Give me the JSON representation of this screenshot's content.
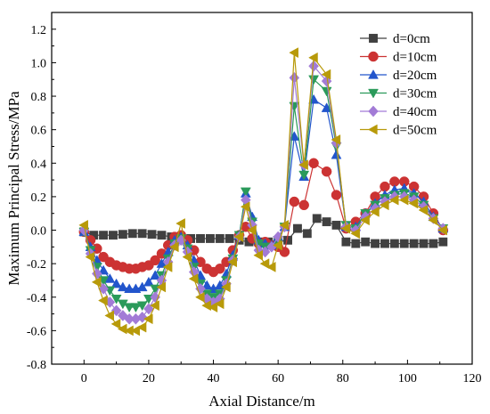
{
  "chart_data": {
    "type": "line",
    "xlabel": "Axial Distance/m",
    "ylabel": "Maximum Principal Stress/MPa",
    "xlim": [
      -10,
      120
    ],
    "ylim": [
      -0.8,
      1.3
    ],
    "xticks": [
      "0",
      "20",
      "40",
      "60",
      "80",
      "100",
      "120"
    ],
    "yticks": [
      "-0.8",
      "-0.6",
      "-0.4",
      "-0.2",
      "0.0",
      "0.2",
      "0.4",
      "0.6",
      "0.8",
      "1.0",
      "1.2"
    ],
    "grid": false,
    "legend_position": "top-right",
    "series": [
      {
        "name": "d=0cm",
        "color": "#404040",
        "marker": "square",
        "x": [
          0,
          3,
          6,
          9,
          12,
          15,
          18,
          21,
          24,
          27,
          30,
          33,
          36,
          39,
          42,
          45,
          48,
          51,
          54,
          57,
          60,
          63,
          66,
          69,
          72,
          75,
          78,
          81,
          84,
          87,
          90,
          93,
          96,
          99,
          102,
          105,
          108,
          111
        ],
        "y": [
          -0.01,
          -0.03,
          -0.03,
          -0.03,
          -0.025,
          -0.02,
          -0.02,
          -0.025,
          -0.03,
          -0.04,
          -0.05,
          -0.05,
          -0.05,
          -0.05,
          -0.05,
          -0.05,
          -0.06,
          -0.07,
          -0.07,
          -0.07,
          -0.07,
          -0.06,
          0.01,
          -0.02,
          0.07,
          0.05,
          0.03,
          -0.07,
          -0.08,
          -0.07,
          -0.08,
          -0.08,
          -0.08,
          -0.08,
          -0.08,
          -0.08,
          -0.08,
          -0.07
        ]
      },
      {
        "name": "d=10cm",
        "color": "#cc3333",
        "marker": "circle",
        "x": [
          0,
          2,
          4,
          6,
          8,
          10,
          12,
          14,
          16,
          18,
          20,
          22,
          24,
          26,
          28,
          30,
          32,
          34,
          36,
          38,
          40,
          42,
          44,
          46,
          48,
          50,
          52,
          54,
          56,
          58,
          60,
          62,
          65,
          68,
          71,
          75,
          78,
          81,
          84,
          87,
          90,
          93,
          96,
          99,
          102,
          105,
          108,
          111
        ],
        "y": [
          -0.01,
          -0.06,
          -0.11,
          -0.16,
          -0.19,
          -0.21,
          -0.22,
          -0.23,
          -0.23,
          -0.22,
          -0.21,
          -0.18,
          -0.14,
          -0.09,
          -0.04,
          -0.03,
          -0.06,
          -0.12,
          -0.19,
          -0.23,
          -0.25,
          -0.23,
          -0.19,
          -0.12,
          -0.03,
          0.02,
          -0.05,
          -0.08,
          -0.07,
          -0.09,
          -0.1,
          -0.13,
          0.17,
          0.15,
          0.4,
          0.35,
          0.21,
          0.01,
          0.05,
          0.1,
          0.2,
          0.26,
          0.29,
          0.29,
          0.26,
          0.2,
          0.1,
          0.0
        ]
      },
      {
        "name": "d=20cm",
        "color": "#2255cc",
        "marker": "triangle-up",
        "x": [
          0,
          2,
          4,
          6,
          8,
          10,
          12,
          14,
          16,
          18,
          20,
          22,
          24,
          26,
          28,
          30,
          32,
          34,
          36,
          38,
          40,
          42,
          44,
          46,
          48,
          50,
          52,
          54,
          56,
          58,
          60,
          62,
          65,
          68,
          71,
          75,
          78,
          81,
          84,
          87,
          90,
          93,
          96,
          99,
          102,
          105,
          108,
          111
        ],
        "y": [
          -0.01,
          -0.1,
          -0.18,
          -0.24,
          -0.29,
          -0.32,
          -0.34,
          -0.35,
          -0.35,
          -0.34,
          -0.31,
          -0.27,
          -0.2,
          -0.13,
          -0.06,
          -0.04,
          -0.09,
          -0.18,
          -0.27,
          -0.33,
          -0.35,
          -0.33,
          -0.26,
          -0.15,
          -0.03,
          0.22,
          0.08,
          -0.06,
          -0.08,
          -0.09,
          -0.04,
          0.02,
          0.56,
          0.32,
          0.78,
          0.73,
          0.45,
          0.02,
          0.02,
          0.1,
          0.16,
          0.21,
          0.24,
          0.25,
          0.22,
          0.17,
          0.08,
          0.01
        ]
      },
      {
        "name": "d=30cm",
        "color": "#2a9a5a",
        "marker": "triangle-down",
        "x": [
          0,
          2,
          4,
          6,
          8,
          10,
          12,
          14,
          16,
          18,
          20,
          22,
          24,
          26,
          28,
          30,
          32,
          34,
          36,
          38,
          40,
          42,
          44,
          46,
          48,
          50,
          52,
          54,
          56,
          58,
          60,
          62,
          65,
          68,
          71,
          75,
          78,
          81,
          84,
          87,
          90,
          93,
          96,
          99,
          102,
          105,
          108,
          111
        ],
        "y": [
          -0.01,
          -0.12,
          -0.22,
          -0.3,
          -0.36,
          -0.41,
          -0.44,
          -0.46,
          -0.46,
          -0.45,
          -0.41,
          -0.35,
          -0.27,
          -0.17,
          -0.08,
          -0.05,
          -0.11,
          -0.22,
          -0.32,
          -0.38,
          -0.4,
          -0.38,
          -0.3,
          -0.17,
          -0.03,
          0.23,
          0.05,
          -0.08,
          -0.1,
          -0.1,
          -0.06,
          0.02,
          0.74,
          0.33,
          0.9,
          0.83,
          0.5,
          0.03,
          0.01,
          0.1,
          0.15,
          0.19,
          0.21,
          0.22,
          0.2,
          0.15,
          0.07,
          0.01
        ]
      },
      {
        "name": "d=40cm",
        "color": "#a27bd6",
        "marker": "diamond",
        "x": [
          0,
          2,
          4,
          6,
          8,
          10,
          12,
          14,
          16,
          18,
          20,
          22,
          24,
          26,
          28,
          30,
          32,
          34,
          36,
          38,
          40,
          42,
          44,
          46,
          48,
          50,
          52,
          54,
          56,
          58,
          60,
          62,
          65,
          68,
          71,
          75,
          78,
          81,
          84,
          87,
          90,
          93,
          96,
          99,
          102,
          105,
          108,
          111
        ],
        "y": [
          0.0,
          -0.14,
          -0.26,
          -0.35,
          -0.43,
          -0.48,
          -0.51,
          -0.53,
          -0.53,
          -0.52,
          -0.47,
          -0.4,
          -0.3,
          -0.19,
          -0.09,
          -0.06,
          -0.13,
          -0.25,
          -0.35,
          -0.41,
          -0.43,
          -0.41,
          -0.32,
          -0.18,
          -0.04,
          0.18,
          0.03,
          -0.12,
          -0.13,
          -0.1,
          -0.04,
          0.02,
          0.91,
          0.39,
          0.98,
          0.89,
          0.52,
          0.02,
          0.0,
          0.08,
          0.13,
          0.17,
          0.2,
          0.2,
          0.18,
          0.14,
          0.07,
          0.01
        ]
      },
      {
        "name": "d=50cm",
        "color": "#b89a0a",
        "marker": "triangle-left",
        "x": [
          0,
          2,
          4,
          6,
          8,
          10,
          12,
          14,
          16,
          18,
          20,
          22,
          24,
          26,
          28,
          30,
          32,
          34,
          36,
          38,
          40,
          42,
          44,
          46,
          48,
          50,
          52,
          54,
          56,
          58,
          60,
          62,
          65,
          68,
          71,
          75,
          78,
          81,
          84,
          87,
          90,
          93,
          96,
          99,
          102,
          105,
          108,
          111
        ],
        "y": [
          0.03,
          -0.16,
          -0.31,
          -0.42,
          -0.51,
          -0.56,
          -0.59,
          -0.6,
          -0.6,
          -0.58,
          -0.53,
          -0.45,
          -0.34,
          -0.22,
          -0.1,
          0.04,
          -0.16,
          -0.29,
          -0.4,
          -0.45,
          -0.46,
          -0.44,
          -0.34,
          -0.19,
          -0.04,
          0.14,
          0.0,
          -0.15,
          -0.2,
          -0.22,
          -0.09,
          0.03,
          1.06,
          0.39,
          1.03,
          0.93,
          0.54,
          0.01,
          -0.02,
          0.06,
          0.11,
          0.15,
          0.18,
          0.18,
          0.16,
          0.12,
          0.06,
          0.0
        ]
      }
    ]
  }
}
